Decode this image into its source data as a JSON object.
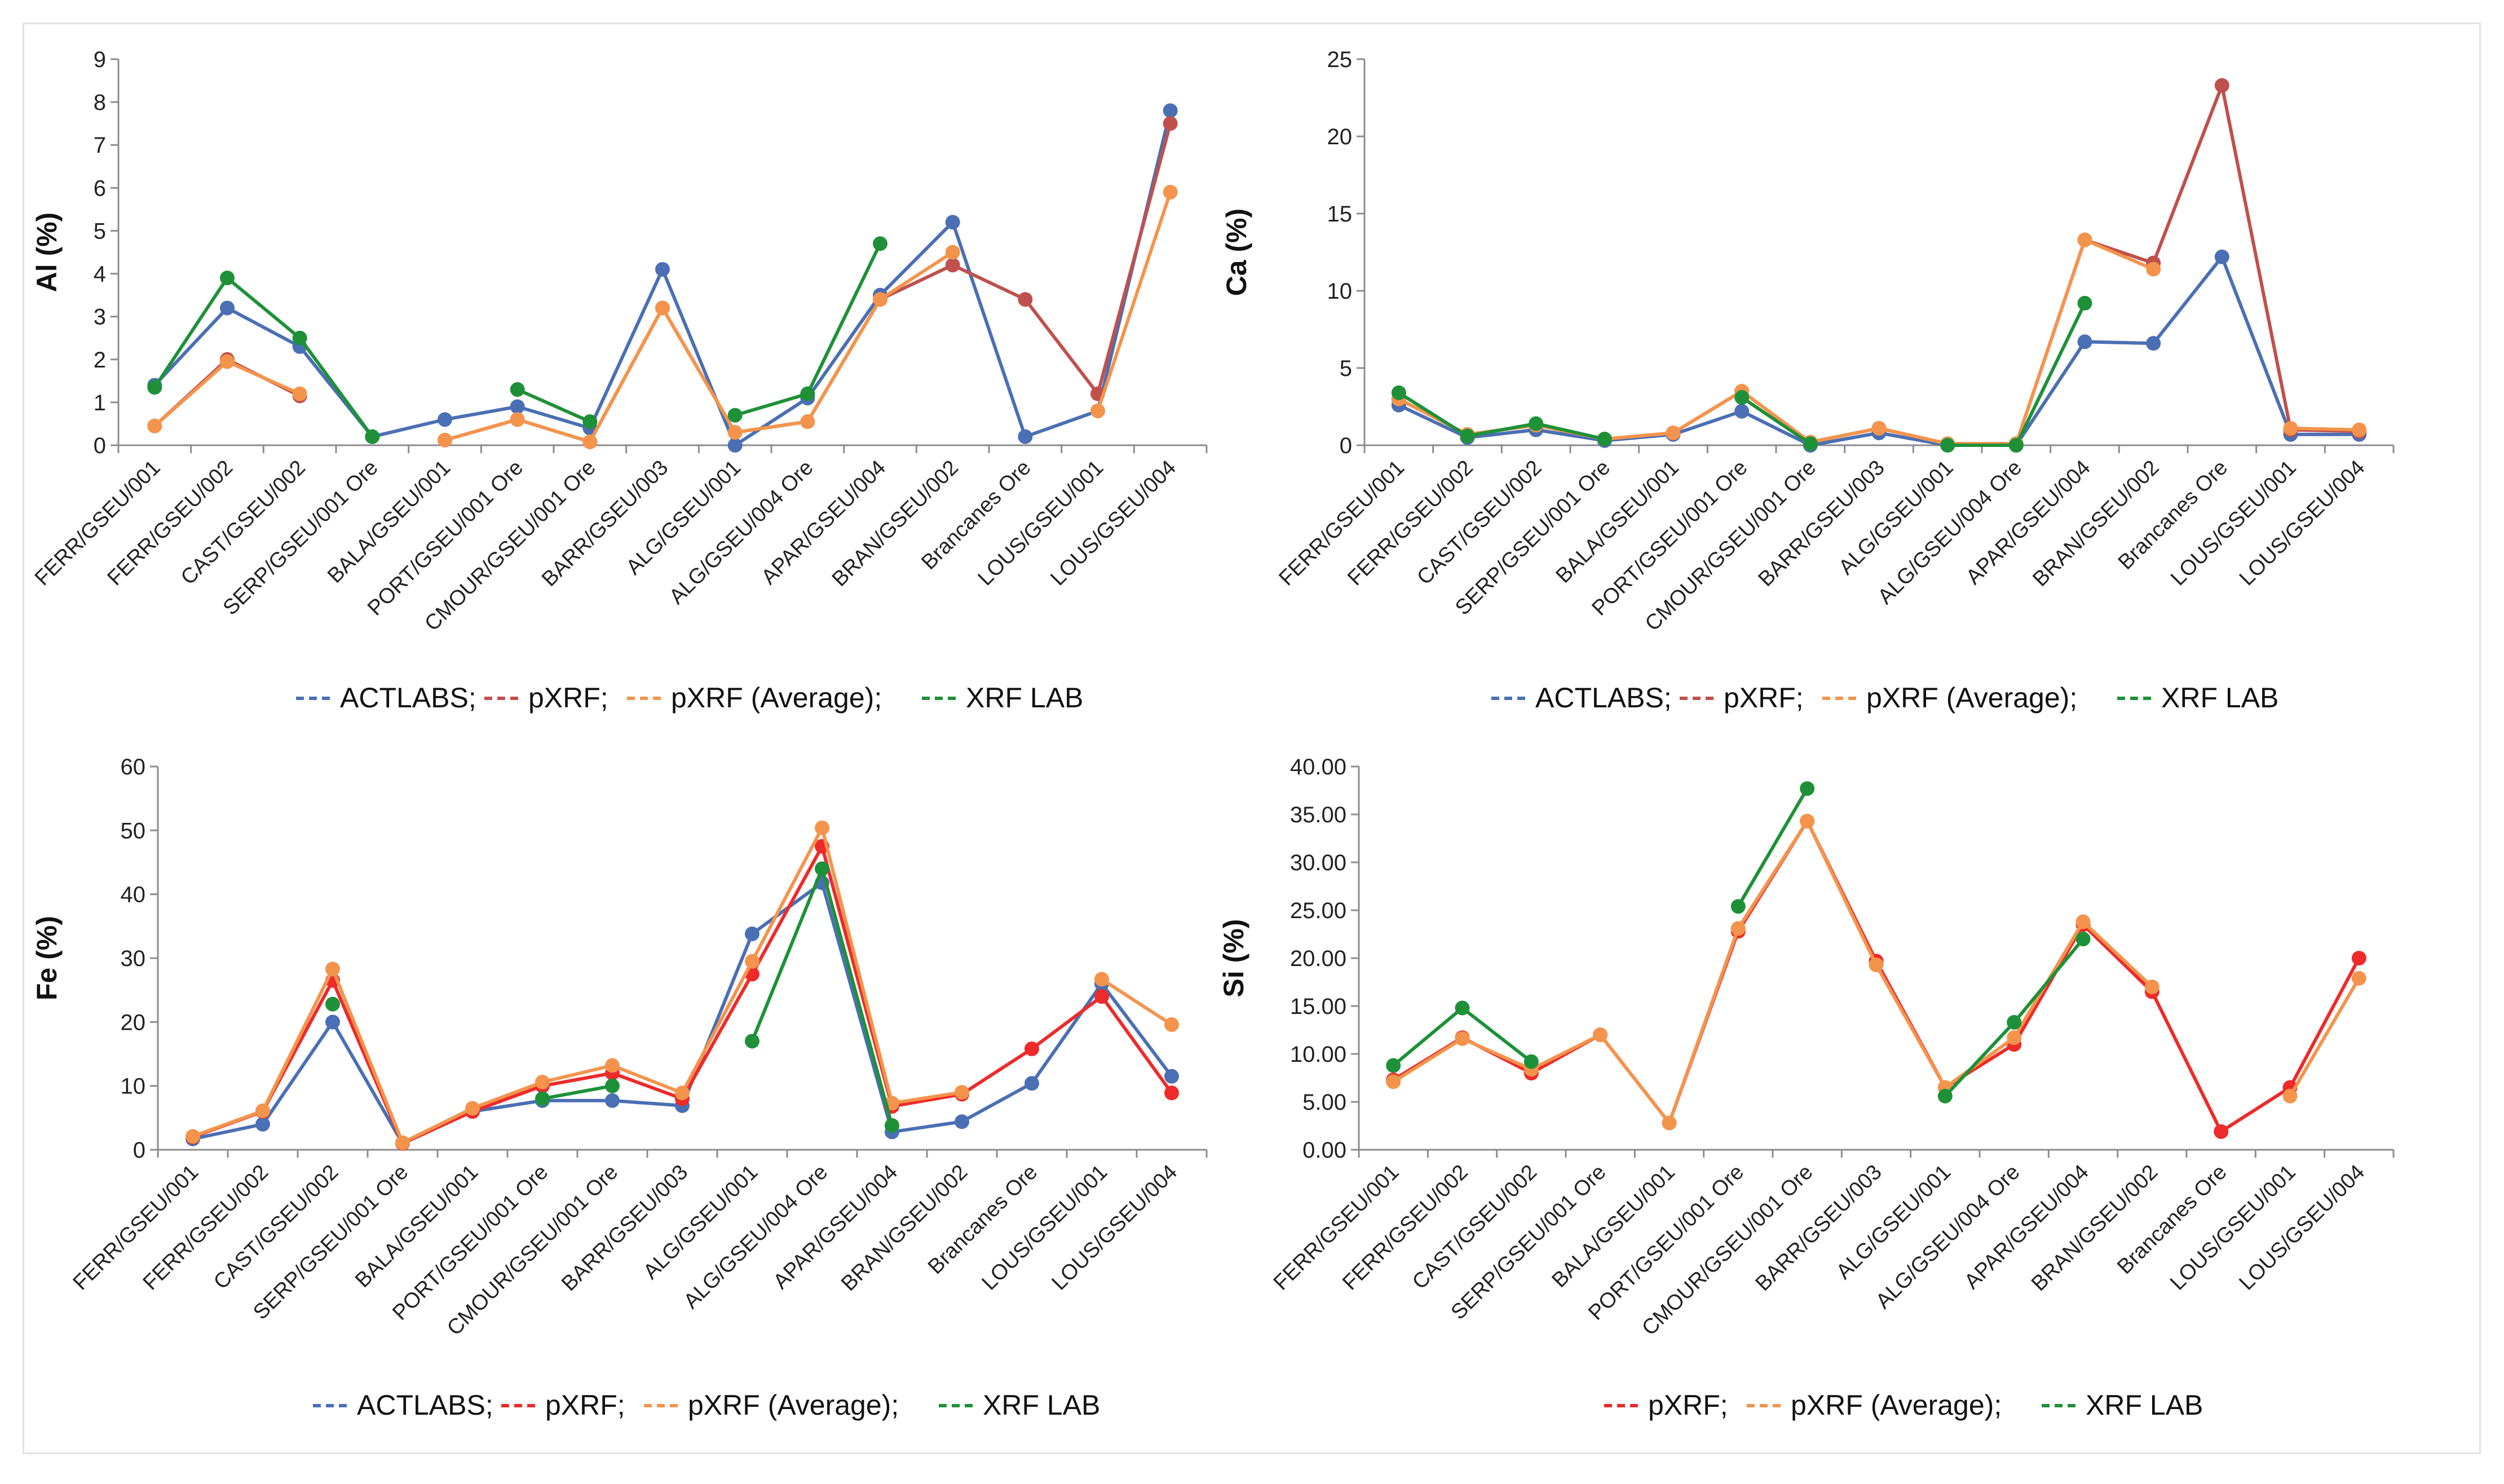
{
  "chart_data": [
    {
      "type": "line",
      "ylabel": "Al (%)",
      "ylim": [
        0,
        9
      ],
      "yticks": [
        "0",
        "1",
        "2",
        "3",
        "4",
        "5",
        "6",
        "7",
        "8",
        "9"
      ],
      "categories": [
        "FERR/GSEU/001",
        "FERR/GSEU/002",
        "CAST/GSEU/002",
        "SERP/GSEU/001 Ore",
        "BALA/GSEU/001",
        "PORT/GSEU/001 Ore",
        "CMOUR/GSEU/001 Ore",
        "BARR/GSEU/003",
        "ALG/GSEU/001",
        "ALG/GSEU/004 Ore",
        "APAR/GSEU/004",
        "BRAN/GSEU/002",
        "Brancanes Ore",
        "LOUS/GSEU/001",
        "LOUS/GSEU/004"
      ],
      "legend": [
        "ACTLABS;",
        "pXRF;",
        "pXRF (Average);",
        "XRF LAB"
      ],
      "series": [
        {
          "name": "ACTLABS",
          "color": "#4a6fb4",
          "values": [
            1.4,
            3.2,
            2.3,
            0.2,
            0.6,
            0.9,
            0.4,
            4.1,
            0.0,
            1.1,
            3.5,
            5.2,
            0.2,
            0.8,
            7.8
          ]
        },
        {
          "name": "pXRF",
          "color": "#c0504d",
          "values": [
            0.45,
            2.0,
            1.15,
            null,
            0.12,
            0.6,
            0.08,
            3.2,
            0.3,
            0.55,
            3.4,
            4.2,
            3.4,
            1.2,
            7.5
          ]
        },
        {
          "name": "pXRF (Average)",
          "color": "#f4944c",
          "values": [
            0.45,
            1.95,
            1.2,
            null,
            0.12,
            0.6,
            0.08,
            3.2,
            0.3,
            0.55,
            3.4,
            4.5,
            null,
            0.8,
            5.9
          ]
        },
        {
          "name": "XRF LAB",
          "color": "#1e9138",
          "values": [
            1.35,
            3.9,
            2.5,
            0.2,
            null,
            1.3,
            0.55,
            null,
            0.7,
            1.2,
            4.7,
            null,
            null,
            null,
            null
          ]
        }
      ]
    },
    {
      "type": "line",
      "ylabel": "Ca (%)",
      "ylim": [
        0,
        25
      ],
      "yticks": [
        "0",
        "5",
        "10",
        "15",
        "20",
        "25"
      ],
      "categories": [
        "FERR/GSEU/001",
        "FERR/GSEU/002",
        "CAST/GSEU/002",
        "SERP/GSEU/001 Ore",
        "BALA/GSEU/001",
        "PORT/GSEU/001 Ore",
        "CMOUR/GSEU/001 Ore",
        "BARR/GSEU/003",
        "ALG/GSEU/001",
        "ALG/GSEU/004 Ore",
        "APAR/GSEU/004",
        "BRAN/GSEU/002",
        "Brancanes Ore",
        "LOUS/GSEU/001",
        "LOUS/GSEU/004"
      ],
      "legend": [
        "ACTLABS;",
        "pXRF;",
        "pXRF (Average);",
        "XRF LAB"
      ],
      "series": [
        {
          "name": "ACTLABS",
          "color": "#4a6fb4",
          "values": [
            2.6,
            0.5,
            1.0,
            0.3,
            0.7,
            2.2,
            0.0,
            0.8,
            0.0,
            0.0,
            6.7,
            6.6,
            12.2,
            0.7,
            0.7
          ]
        },
        {
          "name": "pXRF",
          "color": "#c0504d",
          "values": [
            3.0,
            0.7,
            1.3,
            0.4,
            0.8,
            3.5,
            0.2,
            1.1,
            0.1,
            0.1,
            13.3,
            11.8,
            23.3,
            1.0,
            0.9
          ]
        },
        {
          "name": "pXRF (Average)",
          "color": "#f4944c",
          "values": [
            3.0,
            0.7,
            1.3,
            0.4,
            0.8,
            3.5,
            0.2,
            1.1,
            0.1,
            0.1,
            13.3,
            11.4,
            null,
            1.1,
            1.0
          ]
        },
        {
          "name": "XRF LAB",
          "color": "#1e9138",
          "values": [
            3.4,
            0.6,
            1.4,
            0.4,
            null,
            3.1,
            0.1,
            null,
            0.0,
            0.0,
            9.2,
            null,
            null,
            null,
            null
          ]
        }
      ]
    },
    {
      "type": "line",
      "ylabel": "Fe (%)",
      "ylim": [
        0,
        60
      ],
      "yticks": [
        "0",
        "10",
        "20",
        "30",
        "40",
        "50",
        "60"
      ],
      "categories": [
        "FERR/GSEU/001",
        "FERR/GSEU/002",
        "CAST/GSEU/002",
        "SERP/GSEU/001 Ore",
        "BALA/GSEU/001",
        "PORT/GSEU/001 Ore",
        "CMOUR/GSEU/001 Ore",
        "BARR/GSEU/003",
        "ALG/GSEU/001",
        "ALG/GSEU/004 Ore",
        "APAR/GSEU/004",
        "BRAN/GSEU/002",
        "Brancanes Ore",
        "LOUS/GSEU/001",
        "LOUS/GSEU/004"
      ],
      "legend": [
        "ACTLABS;",
        "pXRF;",
        "pXRF (Average);",
        "XRF LAB"
      ],
      "series": [
        {
          "name": "ACTLABS",
          "color": "#4a6fb4",
          "values": [
            1.7,
            4.0,
            20.0,
            1.0,
            6.0,
            7.7,
            7.7,
            6.9,
            33.8,
            41.8,
            2.8,
            4.4,
            10.4,
            26.0,
            11.5
          ]
        },
        {
          "name": "pXRF",
          "color": "#ee2a2a",
          "values": [
            2.0,
            6.0,
            26.5,
            1.0,
            6.0,
            10.0,
            12.0,
            8.0,
            27.5,
            47.5,
            6.8,
            8.7,
            15.8,
            24.0,
            8.9
          ]
        },
        {
          "name": "pXRF (Average)",
          "color": "#f4944c",
          "values": [
            2.1,
            6.1,
            28.3,
            1.1,
            6.5,
            10.6,
            13.2,
            8.9,
            29.5,
            50.4,
            7.3,
            9.0,
            null,
            26.7,
            19.6
          ]
        },
        {
          "name": "XRF LAB",
          "color": "#1e9138",
          "values": [
            null,
            null,
            22.8,
            null,
            null,
            8.0,
            10.0,
            null,
            17.0,
            44.0,
            3.8,
            null,
            null,
            null,
            null
          ]
        }
      ]
    },
    {
      "type": "line",
      "ylabel": "Si (%)",
      "ylim": [
        0,
        40
      ],
      "yticks": [
        "0.00",
        "5.00",
        "10.00",
        "15.00",
        "20.00",
        "25.00",
        "30.00",
        "35.00",
        "40.00"
      ],
      "categories": [
        "FERR/GSEU/001",
        "FERR/GSEU/002",
        "CAST/GSEU/002",
        "SERP/GSEU/001 Ore",
        "BALA/GSEU/001",
        "PORT/GSEU/001 Ore",
        "CMOUR/GSEU/001 Ore",
        "BARR/GSEU/003",
        "ALG/GSEU/001",
        "ALG/GSEU/004 Ore",
        "APAR/GSEU/004",
        "BRAN/GSEU/002",
        "Brancanes Ore",
        "LOUS/GSEU/001",
        "LOUS/GSEU/004"
      ],
      "legend": [
        "pXRF;",
        "pXRF (Average);",
        "XRF LAB"
      ],
      "series": [
        {
          "name": "pXRF",
          "color": "#ee2a2a",
          "values": [
            7.3,
            11.7,
            8.0,
            12.0,
            2.8,
            22.8,
            34.3,
            19.7,
            6.5,
            11.0,
            23.5,
            16.5,
            1.9,
            6.5,
            20.0
          ]
        },
        {
          "name": "pXRF (Average)",
          "color": "#f4944c",
          "values": [
            7.1,
            11.6,
            8.4,
            12.0,
            2.8,
            23.1,
            34.3,
            19.3,
            6.5,
            11.7,
            23.8,
            17.0,
            null,
            5.6,
            17.9
          ]
        },
        {
          "name": "XRF LAB",
          "color": "#1e9138",
          "values": [
            8.8,
            14.8,
            9.2,
            null,
            null,
            25.4,
            37.7,
            null,
            5.6,
            13.3,
            22.0,
            null,
            null,
            null,
            null
          ]
        }
      ]
    }
  ]
}
